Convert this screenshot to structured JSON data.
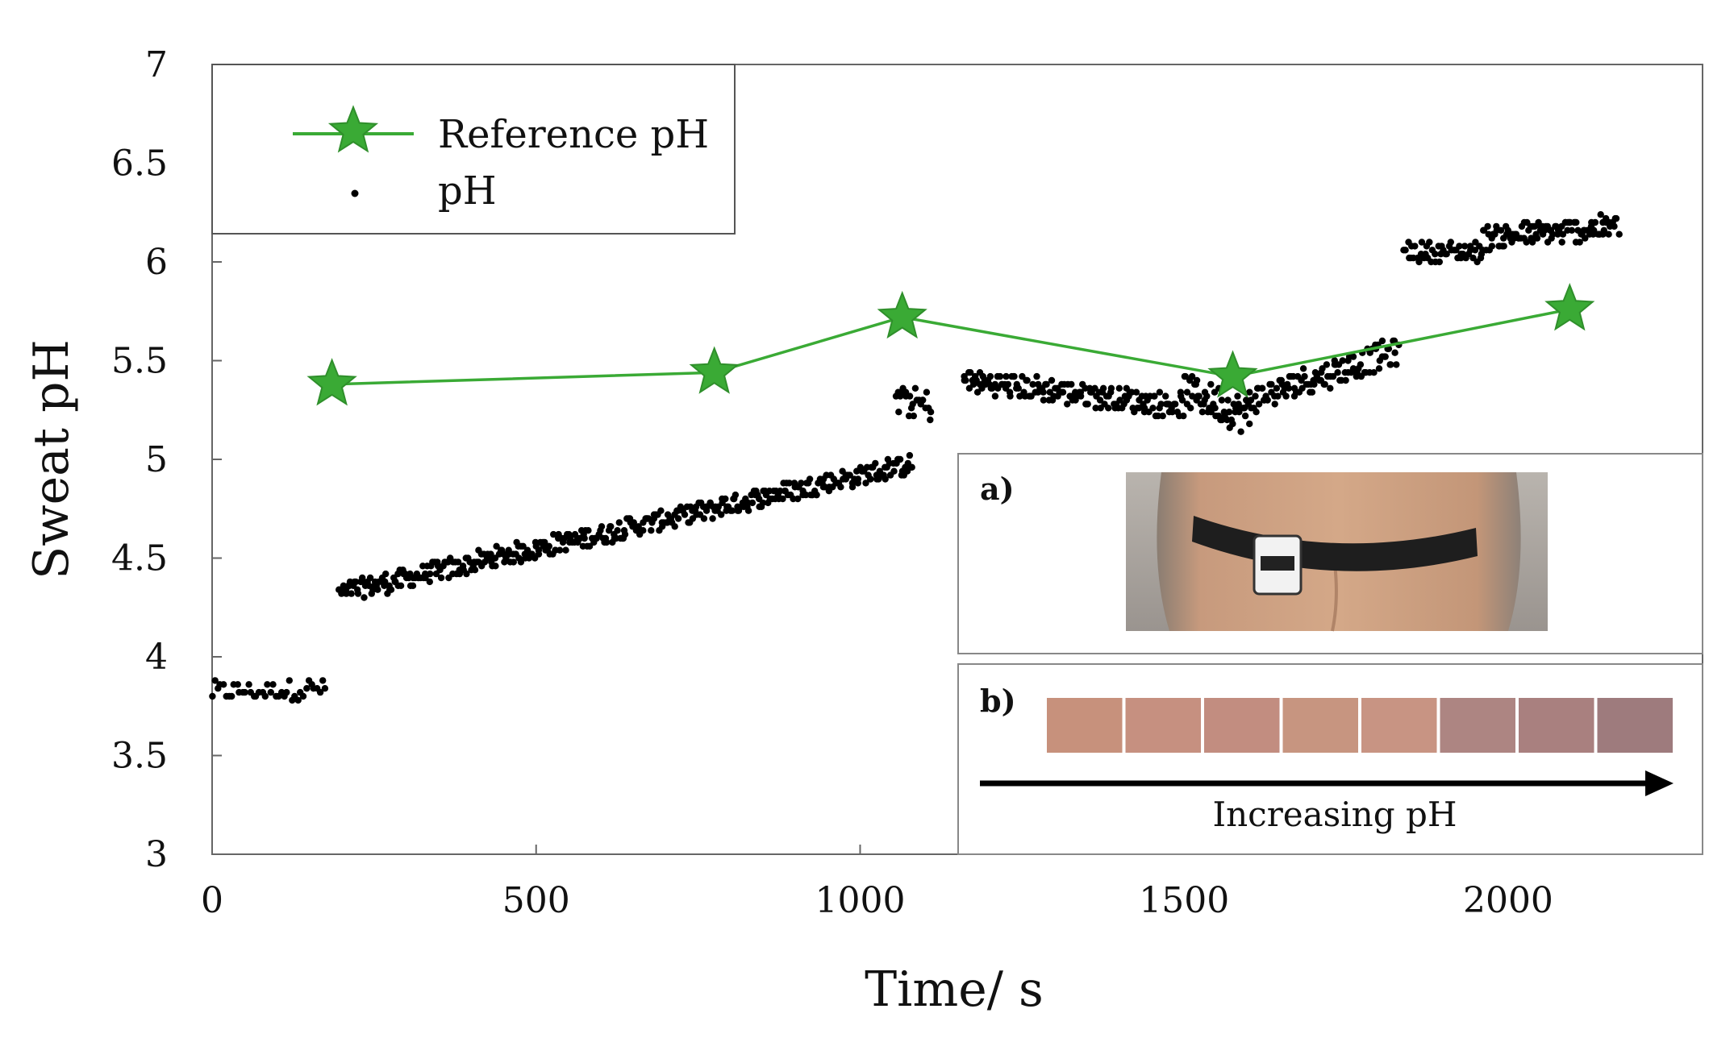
{
  "chart_data": {
    "type": "scatter",
    "title": "",
    "xlabel": "Time/ s",
    "ylabel": "Sweat pH",
    "xlim": [
      0,
      2300
    ],
    "ylim": [
      3,
      7
    ],
    "xticks": [
      0,
      500,
      1000,
      1500,
      2000
    ],
    "yticks": [
      3,
      3.5,
      4,
      4.5,
      5,
      5.5,
      6,
      6.5,
      7
    ],
    "legend": {
      "position": "top-left",
      "entries": [
        "Reference pH",
        "pH"
      ]
    },
    "colors": {
      "reference": "#3aaa35",
      "ph": "#000000",
      "frame": "#555555"
    },
    "series": [
      {
        "name": "Reference pH",
        "style": "line-with-star-markers",
        "x": [
          185,
          775,
          1065,
          1575,
          2095
        ],
        "y": [
          5.38,
          5.44,
          5.72,
          5.42,
          5.76
        ]
      },
      {
        "name": "pH",
        "style": "scatter-dots",
        "segments": [
          {
            "x_start": 0,
            "x_end": 175,
            "count": 42,
            "start": 3.82,
            "end": 3.84,
            "noise": 0.05
          },
          {
            "x_start": 195,
            "x_end": 1080,
            "count": 420,
            "start": 4.32,
            "end": 4.98,
            "noise": 0.05
          },
          {
            "x_start": 1055,
            "x_end": 1110,
            "count": 24,
            "start": 5.3,
            "end": 5.27,
            "noise": 0.08
          },
          {
            "x_start": 1160,
            "x_end": 1500,
            "count": 160,
            "start": 5.4,
            "end": 5.27,
            "noise": 0.06
          },
          {
            "x_start": 1500,
            "x_end": 1600,
            "count": 55,
            "start": 5.35,
            "end": 5.22,
            "noise": 0.09
          },
          {
            "x_start": 1600,
            "x_end": 1830,
            "count": 110,
            "start": 5.3,
            "end": 5.55,
            "noise": 0.07
          },
          {
            "x_start": 1840,
            "x_end": 1960,
            "count": 50,
            "start": 6.05,
            "end": 6.05,
            "noise": 0.05
          },
          {
            "x_start": 1960,
            "x_end": 2170,
            "count": 110,
            "start": 6.12,
            "end": 6.18,
            "noise": 0.06
          }
        ]
      }
    ]
  },
  "inset": {
    "panel_a_label": "a)",
    "panel_b_label": "b)",
    "arrow_text": "Increasing pH",
    "photo_desc": "belt-on-back-photo",
    "swatch_colors": [
      "#c7917c",
      "#c69080",
      "#c28d80",
      "#c79580",
      "#c89483",
      "#ad8582",
      "#a9807f",
      "#9e7b7d"
    ]
  }
}
